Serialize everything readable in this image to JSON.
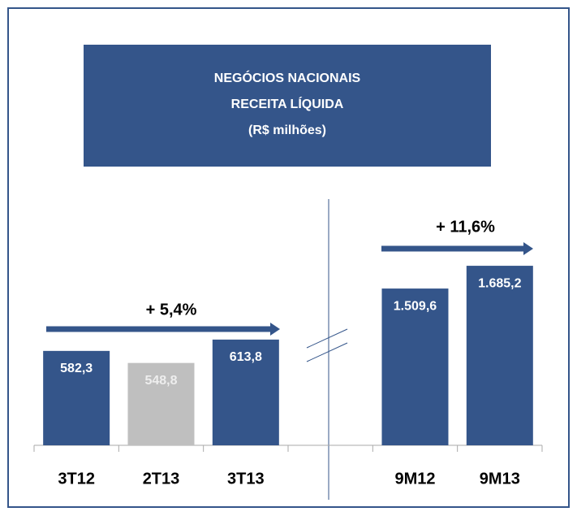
{
  "chart_data": [
    {
      "type": "bar",
      "title": [
        "NEGÓCIOS NACIONAIS",
        "RECEITA LÍQUIDA",
        "(R$ milhões)"
      ],
      "categories": [
        "3T12",
        "2T13",
        "3T13"
      ],
      "values": [
        582.3,
        548.8,
        613.8
      ],
      "value_labels": [
        "582,3",
        "548,8",
        "613,8"
      ],
      "colors": [
        "#34558a",
        "#bfbfbf",
        "#34558a"
      ],
      "ylim": [
        320,
        880
      ],
      "annotation": "+ 5,4%"
    },
    {
      "type": "bar",
      "categories": [
        "9M12",
        "9M13"
      ],
      "values": [
        1509.6,
        1685.2
      ],
      "value_labels": [
        "1.509,6",
        "1.685,2"
      ],
      "colors": [
        "#34558a",
        "#34558a"
      ],
      "ylim": [
        300,
        1855
      ],
      "annotation": "+ 11,6%"
    }
  ]
}
